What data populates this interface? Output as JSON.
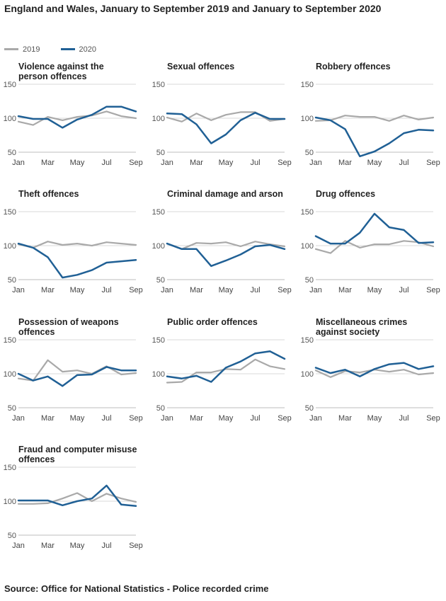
{
  "title": "England and Wales, January to September 2019 and January to September 2020",
  "source": "Source: Office for National Statistics - Police recorded crime",
  "legend": [
    {
      "name": "2019",
      "color": "#a9a9a9"
    },
    {
      "name": "2020",
      "color": "#206095"
    }
  ],
  "chart_data": [
    {
      "type": "line",
      "title": "Violence against the person offences",
      "x": [
        "Jan",
        "Feb",
        "Mar",
        "Apr",
        "May",
        "Jun",
        "Jul",
        "Aug",
        "Sep"
      ],
      "tick_labels": [
        "Jan",
        "Mar",
        "May",
        "Jul",
        "Sep"
      ],
      "y_ticks": [
        50,
        100,
        150
      ],
      "ylim": [
        50,
        150
      ],
      "series": [
        {
          "name": "2019",
          "values": [
            95,
            90,
            102,
            97,
            102,
            104,
            110,
            103,
            100
          ]
        },
        {
          "name": "2020",
          "values": [
            103,
            99,
            99,
            86,
            98,
            105,
            117,
            117,
            110
          ]
        }
      ]
    },
    {
      "type": "line",
      "title": "Sexual offences",
      "x": [
        "Jan",
        "Feb",
        "Mar",
        "Apr",
        "May",
        "Jun",
        "Jul",
        "Aug",
        "Sep"
      ],
      "tick_labels": [
        "Jan",
        "Mar",
        "May",
        "Jul",
        "Sep"
      ],
      "y_ticks": [
        50,
        100,
        150
      ],
      "ylim": [
        50,
        150
      ],
      "series": [
        {
          "name": "2019",
          "values": [
            101,
            95,
            107,
            97,
            105,
            109,
            109,
            96,
            99
          ]
        },
        {
          "name": "2020",
          "values": [
            107,
            106,
            91,
            63,
            76,
            97,
            108,
            99,
            99
          ]
        }
      ]
    },
    {
      "type": "line",
      "title": "Robbery offences",
      "x": [
        "Jan",
        "Feb",
        "Mar",
        "Apr",
        "May",
        "Jun",
        "Jul",
        "Aug",
        "Sep"
      ],
      "tick_labels": [
        "Jan",
        "Mar",
        "May",
        "Jul",
        "Sep"
      ],
      "y_ticks": [
        50,
        100,
        150
      ],
      "ylim": [
        50,
        150
      ],
      "series": [
        {
          "name": "2019",
          "values": [
            96,
            97,
            104,
            102,
            102,
            96,
            104,
            98,
            101
          ]
        },
        {
          "name": "2020",
          "values": [
            101,
            97,
            84,
            44,
            51,
            63,
            78,
            83,
            82
          ]
        }
      ]
    },
    {
      "type": "line",
      "title": "Theft offences",
      "x": [
        "Jan",
        "Feb",
        "Mar",
        "Apr",
        "May",
        "Jun",
        "Jul",
        "Aug",
        "Sep"
      ],
      "tick_labels": [
        "Jan",
        "Mar",
        "May",
        "Jul",
        "Sep"
      ],
      "y_ticks": [
        50,
        100,
        150
      ],
      "ylim": [
        50,
        150
      ],
      "series": [
        {
          "name": "2019",
          "values": [
            102,
            97,
            106,
            101,
            103,
            100,
            105,
            103,
            101
          ]
        },
        {
          "name": "2020",
          "values": [
            103,
            97,
            83,
            53,
            57,
            64,
            75,
            77,
            79
          ]
        }
      ]
    },
    {
      "type": "line",
      "title": "Criminal damage and arson",
      "x": [
        "Jan",
        "Feb",
        "Mar",
        "Apr",
        "May",
        "Jun",
        "Jul",
        "Aug",
        "Sep"
      ],
      "tick_labels": [
        "Jan",
        "Mar",
        "May",
        "Jul",
        "Sep"
      ],
      "y_ticks": [
        50,
        100,
        150
      ],
      "ylim": [
        50,
        150
      ],
      "series": [
        {
          "name": "2019",
          "values": [
            103,
            95,
            104,
            103,
            105,
            99,
            106,
            102,
            99
          ]
        },
        {
          "name": "2020",
          "values": [
            103,
            95,
            95,
            70,
            78,
            87,
            99,
            101,
            95
          ]
        }
      ]
    },
    {
      "type": "line",
      "title": "Drug offences",
      "x": [
        "Jan",
        "Feb",
        "Mar",
        "Apr",
        "May",
        "Jun",
        "Jul",
        "Aug",
        "Sep"
      ],
      "tick_labels": [
        "Jan",
        "Mar",
        "May",
        "Jul",
        "Sep"
      ],
      "y_ticks": [
        50,
        100,
        150
      ],
      "ylim": [
        50,
        150
      ],
      "series": [
        {
          "name": "2019",
          "values": [
            95,
            89,
            107,
            97,
            102,
            102,
            107,
            105,
            99
          ]
        },
        {
          "name": "2020",
          "values": [
            114,
            103,
            103,
            119,
            147,
            127,
            123,
            104,
            105
          ]
        }
      ]
    },
    {
      "type": "line",
      "title": "Possession of weapons offences",
      "x": [
        "Jan",
        "Feb",
        "Mar",
        "Apr",
        "May",
        "Jun",
        "Jul",
        "Aug",
        "Sep"
      ],
      "tick_labels": [
        "Jan",
        "Mar",
        "May",
        "Jul",
        "Sep"
      ],
      "y_ticks": [
        50,
        100,
        150
      ],
      "ylim": [
        50,
        150
      ],
      "series": [
        {
          "name": "2019",
          "values": [
            93,
            90,
            120,
            103,
            105,
            100,
            111,
            99,
            101
          ]
        },
        {
          "name": "2020",
          "values": [
            100,
            90,
            96,
            82,
            98,
            99,
            110,
            105,
            105
          ]
        }
      ]
    },
    {
      "type": "line",
      "title": "Public order offences",
      "x": [
        "Jan",
        "Feb",
        "Mar",
        "Apr",
        "May",
        "Jun",
        "Jul",
        "Aug",
        "Sep"
      ],
      "tick_labels": [
        "Jan",
        "Mar",
        "May",
        "Jul",
        "Sep"
      ],
      "y_ticks": [
        50,
        100,
        150
      ],
      "ylim": [
        50,
        150
      ],
      "series": [
        {
          "name": "2019",
          "values": [
            87,
            88,
            102,
            102,
            107,
            106,
            121,
            111,
            107
          ]
        },
        {
          "name": "2020",
          "values": [
            96,
            93,
            97,
            88,
            109,
            118,
            130,
            133,
            122
          ]
        }
      ]
    },
    {
      "type": "line",
      "title": "Miscellaneous crimes against society",
      "x": [
        "Jan",
        "Feb",
        "Mar",
        "Apr",
        "May",
        "Jun",
        "Jul",
        "Aug",
        "Sep"
      ],
      "tick_labels": [
        "Jan",
        "Mar",
        "May",
        "Jul",
        "Sep"
      ],
      "y_ticks": [
        50,
        100,
        150
      ],
      "ylim": [
        50,
        150
      ],
      "series": [
        {
          "name": "2019",
          "values": [
            105,
            95,
            104,
            102,
            106,
            103,
            106,
            99,
            101
          ]
        },
        {
          "name": "2020",
          "values": [
            109,
            101,
            106,
            96,
            107,
            114,
            116,
            107,
            111
          ]
        }
      ]
    },
    {
      "type": "line",
      "title": "Fraud and computer misuse offences",
      "x": [
        "Jan",
        "Feb",
        "Mar",
        "Apr",
        "May",
        "Jun",
        "Jul",
        "Aug",
        "Sep"
      ],
      "tick_labels": [
        "Jan",
        "Mar",
        "May",
        "Jul",
        "Sep"
      ],
      "y_ticks": [
        50,
        100,
        150
      ],
      "ylim": [
        50,
        150
      ],
      "series": [
        {
          "name": "2019",
          "values": [
            96,
            96,
            97,
            104,
            112,
            100,
            111,
            104,
            99
          ]
        },
        {
          "name": "2020",
          "values": [
            101,
            101,
            101,
            94,
            100,
            104,
            123,
            95,
            93
          ]
        }
      ]
    }
  ]
}
